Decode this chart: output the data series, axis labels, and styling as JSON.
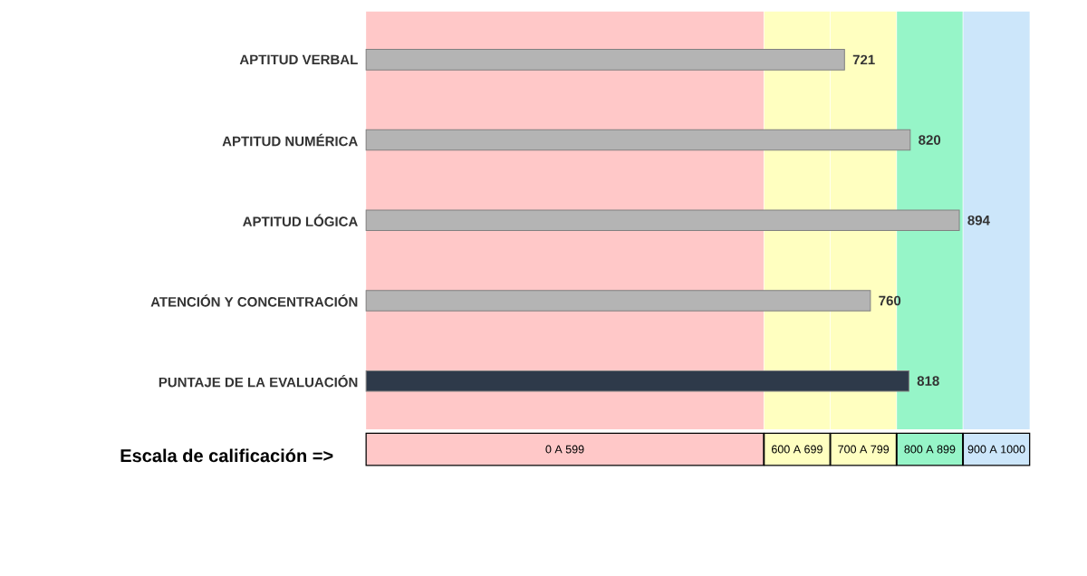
{
  "chart_data": {
    "type": "bar",
    "orientation": "horizontal",
    "xlabel": "Escala de calificación =>",
    "categories": [
      "APTITUD VERBAL",
      "APTITUD NUMÉRICA",
      "APTITUD LÓGICA",
      "ATENCIÓN Y CONCENTRACIÓN",
      "PUNTAJE DE LA EVALUACIÓN"
    ],
    "values": [
      721,
      820,
      894,
      760,
      818
    ],
    "colors": [
      "#b4b4b4",
      "#b4b4b4",
      "#b4b4b4",
      "#b4b4b4",
      "#2e3a4a"
    ],
    "xlim": [
      0,
      1000
    ],
    "data_labels": true,
    "tick_labels": "y",
    "bands": [
      {
        "axis": "x",
        "from": 0,
        "to": 599,
        "label": "0 A 599",
        "color": "#ffc8c8"
      },
      {
        "axis": "x",
        "from": 600,
        "to": 699,
        "label": "600 A 699",
        "color": "#ffffc0"
      },
      {
        "axis": "x",
        "from": 700,
        "to": 799,
        "label": "700 A 799",
        "color": "#ffffc0"
      },
      {
        "axis": "x",
        "from": 800,
        "to": 899,
        "label": "800 A 899",
        "color": "#96f5c8"
      },
      {
        "axis": "x",
        "from": 900,
        "to": 1000,
        "label": "900 A 1000",
        "color": "#cce6fa"
      }
    ]
  }
}
